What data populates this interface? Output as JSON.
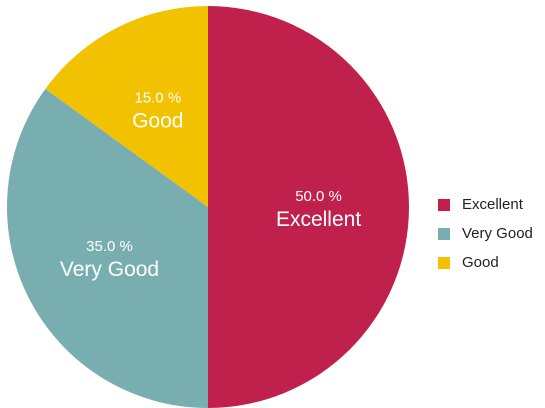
{
  "chart_data": {
    "type": "pie",
    "slices": [
      {
        "label": "Excellent",
        "value": 50.0,
        "pct_text": "50.0 %",
        "color": "#c0214c"
      },
      {
        "label": "Very Good",
        "value": 35.0,
        "pct_text": "35.0 %",
        "color": "#79aeb0"
      },
      {
        "label": "Good",
        "value": 15.0,
        "pct_text": "15.0 %",
        "color": "#f2c200"
      }
    ],
    "legend_position": "right"
  }
}
